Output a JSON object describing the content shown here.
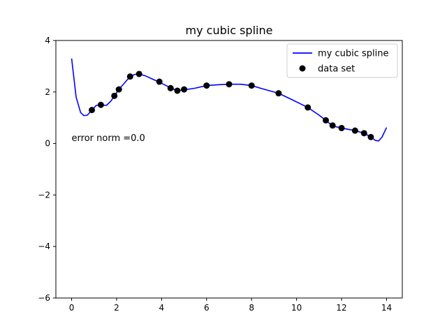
{
  "chart_data": {
    "type": "line",
    "title": "my cubic spline",
    "xlabel": "",
    "ylabel": "",
    "xlim": [
      -0.7,
      14.7
    ],
    "ylim": [
      -6,
      4
    ],
    "xticks": [
      0,
      2,
      4,
      6,
      8,
      10,
      12,
      14
    ],
    "yticks": [
      -6,
      -4,
      -2,
      0,
      2,
      4
    ],
    "grid": false,
    "legend_position": "top-right",
    "annotation": "error norm =0.0",
    "series": [
      {
        "name": "my cubic spline",
        "kind": "line",
        "color": "#0000ff",
        "x": [
          0,
          0.2,
          0.4,
          0.55,
          0.7,
          0.9,
          1.1,
          1.3,
          1.55,
          1.75,
          1.9,
          2.1,
          2.3,
          2.6,
          2.8,
          3.0,
          3.3,
          3.6,
          3.9,
          4.2,
          4.4,
          4.7,
          5.0,
          5.5,
          6.0,
          6.5,
          7.0,
          7.5,
          8.0,
          8.5,
          9.2,
          9.8,
          10.5,
          11.0,
          11.3,
          11.6,
          12.0,
          12.3,
          12.6,
          13.0,
          13.3,
          13.5,
          13.65,
          13.8,
          14.0
        ],
        "y": [
          3.3,
          1.8,
          1.2,
          1.08,
          1.1,
          1.3,
          1.48,
          1.5,
          1.48,
          1.65,
          1.85,
          2.1,
          2.3,
          2.6,
          2.68,
          2.7,
          2.62,
          2.5,
          2.38,
          2.25,
          2.15,
          2.05,
          2.08,
          2.15,
          2.25,
          2.28,
          2.3,
          2.3,
          2.25,
          2.12,
          1.95,
          1.7,
          1.4,
          1.1,
          0.9,
          0.68,
          0.6,
          0.55,
          0.5,
          0.4,
          0.25,
          0.12,
          0.1,
          0.25,
          0.62
        ]
      },
      {
        "name": "data set",
        "kind": "scatter",
        "color": "#000000",
        "x": [
          0.9,
          1.3,
          1.9,
          2.1,
          2.6,
          3.0,
          3.9,
          4.4,
          4.7,
          5.0,
          6.0,
          7.0,
          8.0,
          9.2,
          10.5,
          11.3,
          11.6,
          12.0,
          12.6,
          13.0,
          13.3
        ],
        "y": [
          1.3,
          1.5,
          1.85,
          2.1,
          2.6,
          2.7,
          2.4,
          2.15,
          2.05,
          2.1,
          2.25,
          2.3,
          2.25,
          1.95,
          1.4,
          0.9,
          0.7,
          0.6,
          0.5,
          0.4,
          0.25
        ]
      }
    ]
  }
}
